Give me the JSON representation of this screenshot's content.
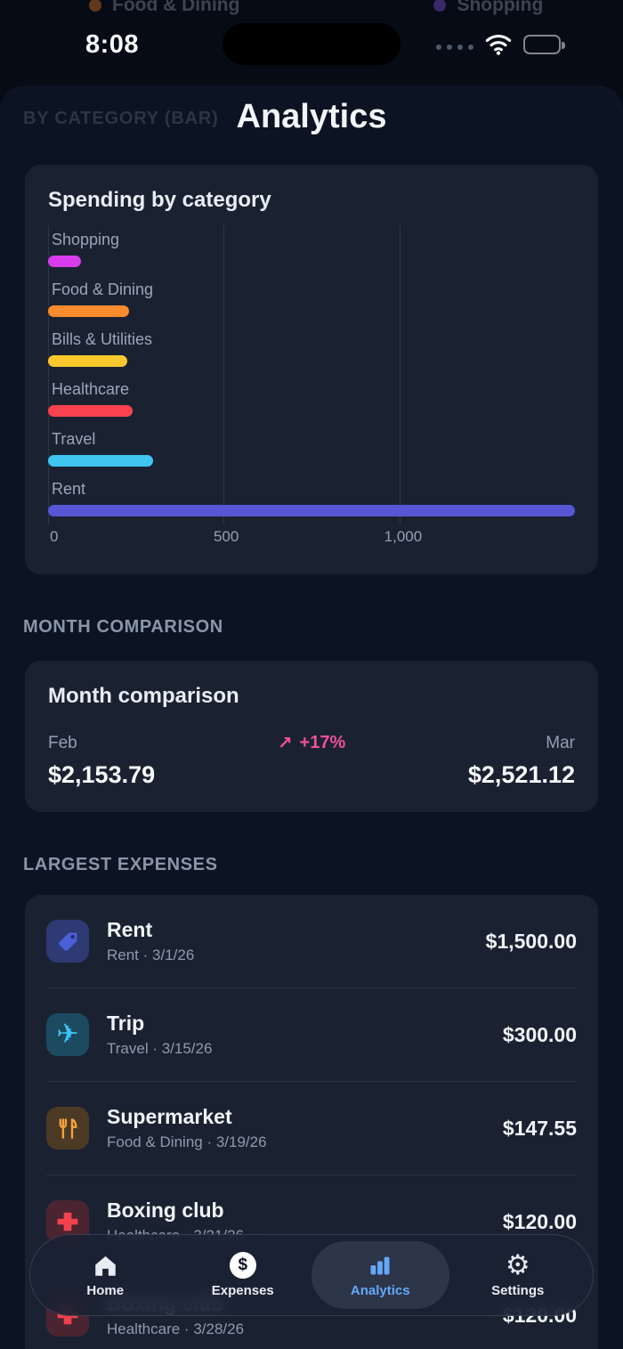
{
  "status_bar": {
    "time": "8:08"
  },
  "peek": {
    "left_item": "Food & Dining",
    "right_item": "Shopping"
  },
  "header": {
    "title": "Analytics",
    "ghost_label": "BY CATEGORY (BAR)"
  },
  "chart_card": {
    "title": "Spending by category"
  },
  "chart_data": {
    "type": "bar",
    "orientation": "horizontal",
    "title": "Spending by category",
    "categories": [
      "Shopping",
      "Food & Dining",
      "Bills & Utilities",
      "Healthcare",
      "Travel",
      "Rent"
    ],
    "values": [
      95,
      230,
      225,
      240,
      300,
      1500
    ],
    "colors": [
      "#d93ceb",
      "#fb8b2c",
      "#fbc92d",
      "#f8434f",
      "#3fc5f0",
      "#5956d6"
    ],
    "xlim": [
      0,
      1500
    ],
    "x_ticks": [
      0,
      500,
      1000
    ],
    "x_tick_labels": [
      "0",
      "500",
      "1,000"
    ],
    "grid": true,
    "legend": false
  },
  "month_comparison": {
    "section_label": "MONTH COMPARISON",
    "card_title": "Month comparison",
    "left_month": "Feb",
    "left_amount": "$2,153.79",
    "change": "+17%",
    "change_color": "#f0509a",
    "right_month": "Mar",
    "right_amount": "$2,521.12"
  },
  "largest_expenses": {
    "section_label": "LARGEST EXPENSES",
    "items": [
      {
        "name": "Rent",
        "meta": "Rent · 3/1/26",
        "amount": "$1,500.00",
        "icon": "tag-icon",
        "icon_bg": "#2d3a74",
        "icon_color": "#4b5fd8"
      },
      {
        "name": "Trip",
        "meta": "Travel · 3/15/26",
        "amount": "$300.00",
        "icon": "airplane-icon",
        "icon_bg": "#1c4a61",
        "icon_color": "#3ec1f2"
      },
      {
        "name": "Supermarket",
        "meta": "Food & Dining · 3/19/26",
        "amount": "$147.55",
        "icon": "utensils-icon",
        "icon_bg": "#4c3a24",
        "icon_color": "#f6a33c"
      },
      {
        "name": "Boxing club",
        "meta": "Healthcare · 3/21/26",
        "amount": "$120.00",
        "icon": "medical-cross-icon",
        "icon_bg": "#4a2531",
        "icon_color": "#f2414e"
      },
      {
        "name": "Boxing club",
        "meta": "Healthcare · 3/28/26",
        "amount": "$120.00",
        "icon": "medical-cross-icon",
        "icon_bg": "#4a2531",
        "icon_color": "#f2414e"
      }
    ]
  },
  "tab_bar": {
    "active_color": "#64a8f8",
    "items": [
      {
        "label": "Home",
        "icon": "home-icon",
        "active": false
      },
      {
        "label": "Expenses",
        "icon": "dollar-circle-icon",
        "active": false
      },
      {
        "label": "Analytics",
        "icon": "bar-chart-icon",
        "active": true
      },
      {
        "label": "Settings",
        "icon": "gear-icon",
        "active": false
      }
    ]
  },
  "icons": {
    "dollar_glyph": "$",
    "gear_glyph": "⚙",
    "airplane_glyph": "✈",
    "trend_arrow": "↗"
  }
}
